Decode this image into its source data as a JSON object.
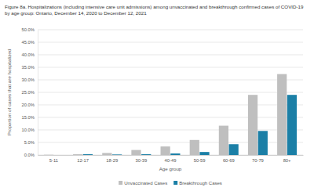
{
  "chart_data": {
    "type": "bar",
    "title": "Figure 8a. Hospitalizations (including intensive care unit admissions) among unvaccinated and breakthrough confirmed cases of COVID-19 by age group: Ontario, December 14, 2020 to December 12, 2021",
    "x_label": "Age group",
    "y_label": "Proportion of cases that are hospitalized",
    "categories": [
      "5-11",
      "12-17",
      "18-29",
      "30-39",
      "40-49",
      "50-59",
      "60-69",
      "70-79",
      "80+"
    ],
    "series": [
      {
        "name": "Unvaccinated Cases",
        "color": "#bfbfbf",
        "values": [
          0.1,
          0.3,
          0.8,
          2.0,
          3.4,
          6.0,
          11.7,
          24.0,
          32.3
        ]
      },
      {
        "name": "Breakthrough Cases",
        "color": "#1b7fa6",
        "values": [
          0.0,
          0.3,
          0.2,
          0.3,
          0.6,
          1.2,
          4.3,
          9.6,
          24.0
        ]
      }
    ],
    "ylim": [
      0,
      50
    ],
    "yticks": [
      {
        "value": 0,
        "label": "0.0%"
      },
      {
        "value": 5,
        "label": "5.0%"
      },
      {
        "value": 10,
        "label": "10.0%"
      },
      {
        "value": 15,
        "label": "15.0%"
      },
      {
        "value": 20,
        "label": "20.0%"
      },
      {
        "value": 25,
        "label": "25.0%"
      },
      {
        "value": 30,
        "label": "30.0%"
      },
      {
        "value": 35,
        "label": "35.0%"
      },
      {
        "value": 40,
        "label": "40.0%"
      },
      {
        "value": 45,
        "label": "45.0%"
      },
      {
        "value": 50,
        "label": "50.0%"
      }
    ],
    "grid": true,
    "legend": "bottom"
  }
}
